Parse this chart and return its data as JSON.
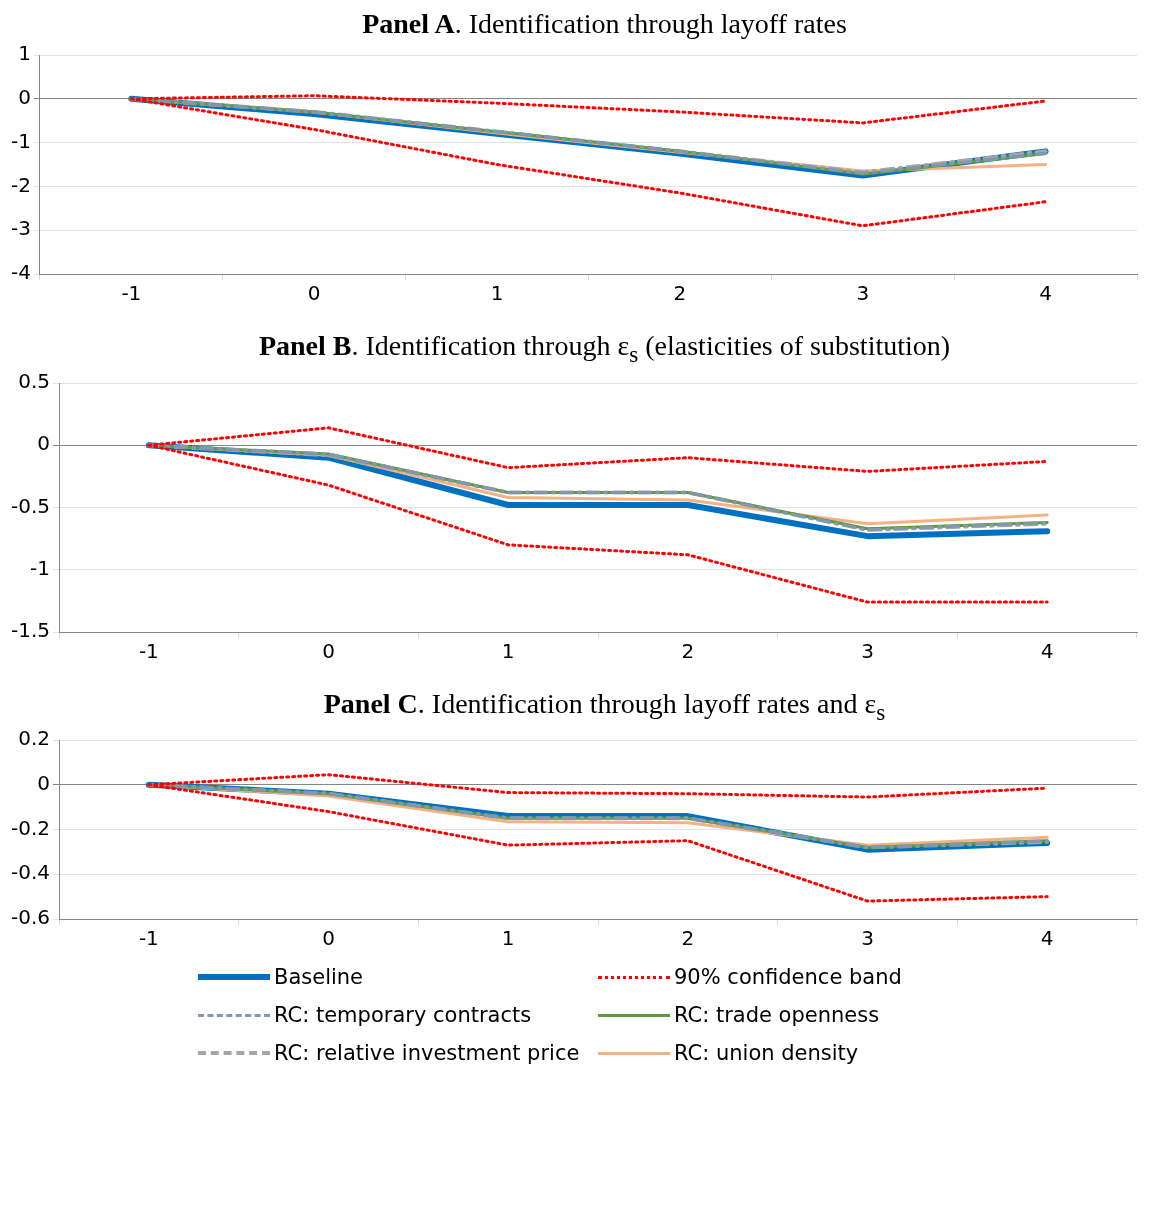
{
  "chart_data": [
    {
      "type": "line",
      "title": "Panel A. Identification through layoff rates",
      "categories": [
        "-1",
        "0",
        "1",
        "2",
        "3",
        "4"
      ],
      "ylim": [
        -4,
        1
      ],
      "yticks": [
        -4,
        -3,
        -2,
        -1,
        0,
        1
      ],
      "grid": "y",
      "legend": false,
      "marker": "none",
      "series": [
        {
          "color": "#0070c0",
          "line_style": "solid",
          "values": [
            0,
            -0.35,
            -0.8,
            -1.25,
            -1.75,
            -1.2
          ]
        },
        {
          "color": "#ff0000",
          "line_style": "dotted",
          "values": [
            0,
            0.07,
            -0.1,
            -0.3,
            -0.55,
            -0.05
          ]
        },
        {
          "color": "#ff0000",
          "line_style": "dotted",
          "values": [
            0,
            -0.7,
            -1.5,
            -2.15,
            -2.9,
            -2.35
          ]
        },
        {
          "color": "#8497b0",
          "line_style": "dashed",
          "values": [
            0,
            -0.3,
            -0.75,
            -1.2,
            -1.7,
            -1.25
          ]
        },
        {
          "color": "#5b9b3c",
          "line_style": "solid",
          "values": [
            0,
            -0.3,
            -0.75,
            -1.2,
            -1.72,
            -1.25
          ]
        },
        {
          "color": "#a6a6a6",
          "line_style": "dashed",
          "values": [
            0,
            -0.3,
            -0.75,
            -1.2,
            -1.68,
            -1.2
          ]
        },
        {
          "color": "#f4b183",
          "line_style": "solid",
          "values": [
            0,
            -0.3,
            -0.78,
            -1.22,
            -1.65,
            -1.5
          ]
        }
      ]
    },
    {
      "type": "line",
      "title": "Panel B. Identification through ε$_{s}$ (elasticities of substitution)",
      "categories": [
        "-1",
        "0",
        "1",
        "2",
        "3",
        "4"
      ],
      "ylim": [
        -1.5,
        0.5
      ],
      "yticks": [
        -1.5,
        -1,
        -0.5,
        0,
        0.5
      ],
      "grid": "y",
      "legend": false,
      "marker": "none",
      "series": [
        {
          "color": "#0070c0",
          "line_style": "solid",
          "values": [
            0,
            -0.1,
            -0.48,
            -0.48,
            -0.73,
            -0.69
          ]
        },
        {
          "color": "#ff0000",
          "line_style": "dotted",
          "values": [
            0,
            0.14,
            -0.18,
            -0.1,
            -0.21,
            -0.13
          ]
        },
        {
          "color": "#ff0000",
          "line_style": "dotted",
          "values": [
            0,
            -0.32,
            -0.8,
            -0.88,
            -1.26,
            -1.26
          ]
        },
        {
          "color": "#8497b0",
          "line_style": "dashed",
          "values": [
            0,
            -0.07,
            -0.38,
            -0.38,
            -0.68,
            -0.62
          ]
        },
        {
          "color": "#5b9b3c",
          "line_style": "solid",
          "values": [
            0,
            -0.07,
            -0.38,
            -0.38,
            -0.67,
            -0.62
          ]
        },
        {
          "color": "#a6a6a6",
          "line_style": "dashed",
          "values": [
            0,
            -0.08,
            -0.38,
            -0.38,
            -0.68,
            -0.63
          ]
        },
        {
          "color": "#f4b183",
          "line_style": "solid",
          "values": [
            0,
            -0.08,
            -0.42,
            -0.44,
            -0.63,
            -0.56
          ]
        }
      ]
    },
    {
      "type": "line",
      "title": "Panel C. Identification through layoff rates and ε$_{s}$",
      "categories": [
        "-1",
        "0",
        "1",
        "2",
        "3",
        "4"
      ],
      "ylim": [
        -0.6,
        0.2
      ],
      "yticks": [
        -0.6,
        -0.4,
        -0.2,
        0,
        0.2
      ],
      "grid": "y",
      "legend": "bottom",
      "marker": "none",
      "series": [
        {
          "name": "Baseline",
          "color": "#0070c0",
          "line_style": "solid",
          "values": [
            0,
            -0.04,
            -0.14,
            -0.14,
            -0.29,
            -0.26
          ]
        },
        {
          "name": "90% confidence band",
          "color": "#ff0000",
          "line_style": "dotted",
          "values": [
            0,
            0.045,
            -0.035,
            -0.04,
            -0.055,
            -0.015
          ]
        },
        {
          "color": "#ff0000",
          "line_style": "dotted",
          "values": [
            0,
            -0.12,
            -0.27,
            -0.25,
            -0.52,
            -0.5
          ]
        },
        {
          "name": "RC: temporary contracts",
          "color": "#8497b0",
          "line_style": "dashed",
          "values": [
            0,
            -0.04,
            -0.15,
            -0.15,
            -0.28,
            -0.25
          ]
        },
        {
          "name": "RC: trade openness",
          "color": "#5b9b3c",
          "line_style": "solid",
          "values": [
            0,
            -0.04,
            -0.15,
            -0.15,
            -0.28,
            -0.25
          ]
        },
        {
          "name": "RC: relative investment price",
          "color": "#a6a6a6",
          "line_style": "dashed",
          "values": [
            0,
            -0.04,
            -0.15,
            -0.15,
            -0.28,
            -0.255
          ]
        },
        {
          "name": "RC: union density",
          "color": "#f4b183",
          "line_style": "solid",
          "values": [
            0,
            -0.05,
            -0.165,
            -0.17,
            -0.27,
            -0.235
          ]
        }
      ]
    }
  ]
}
